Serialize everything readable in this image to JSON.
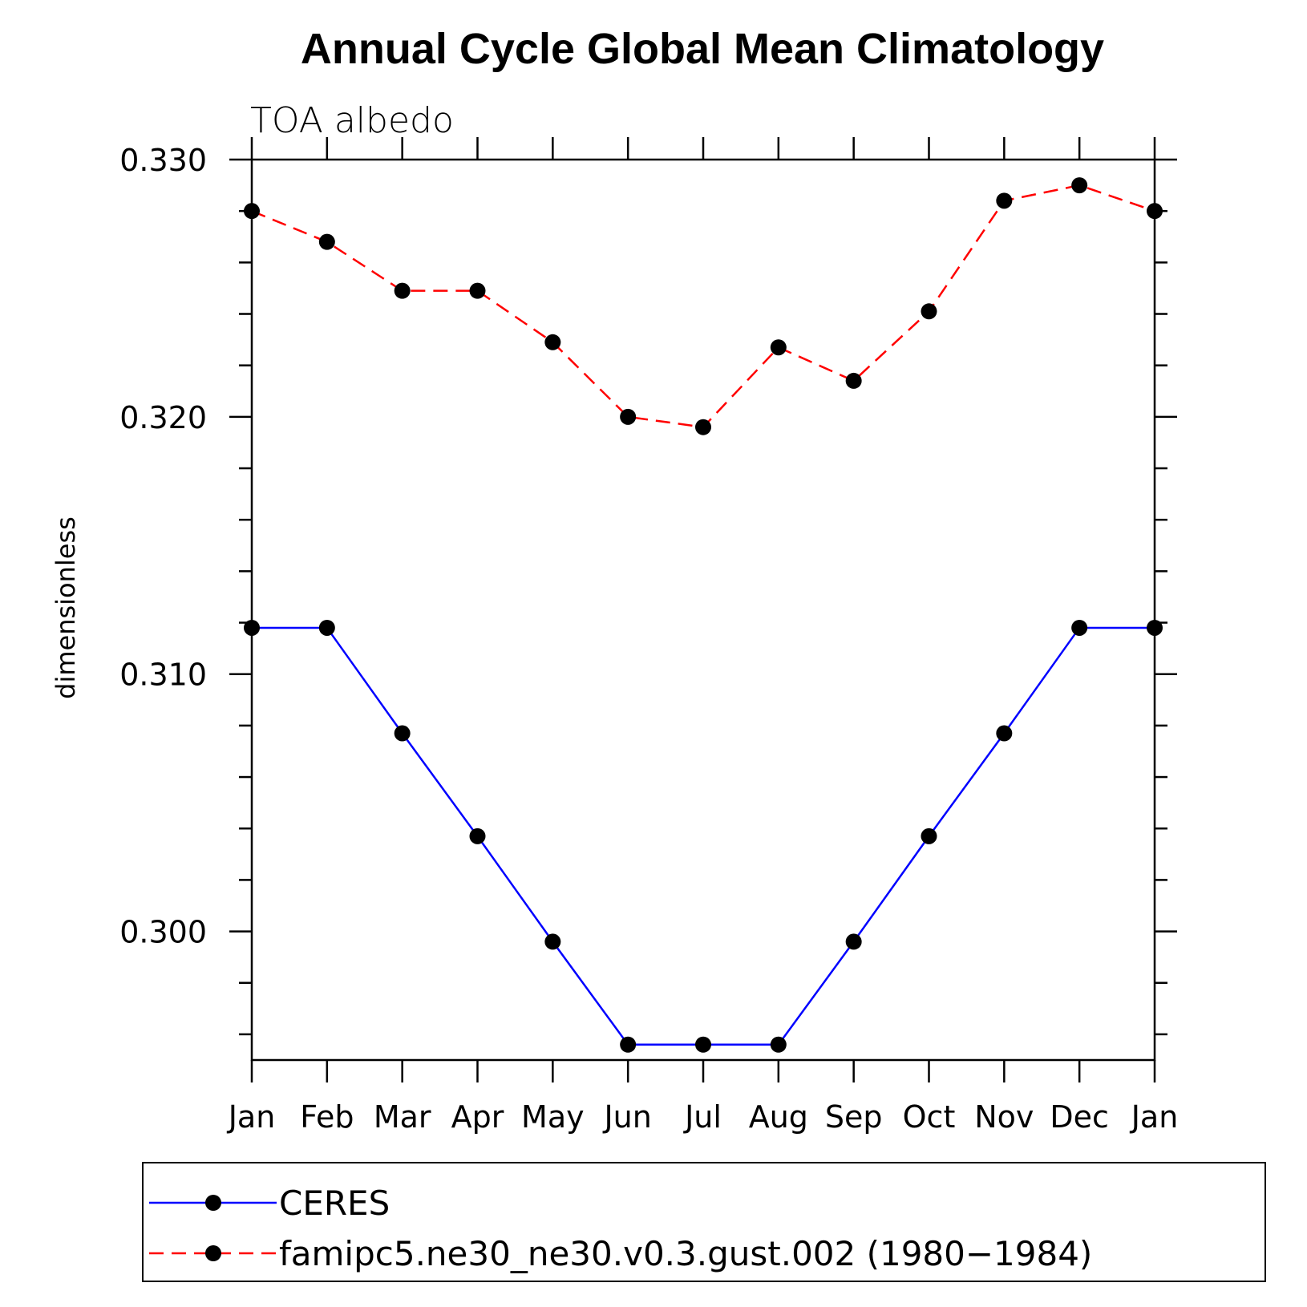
{
  "chart_data": {
    "type": "line",
    "title": "Annual Cycle Global Mean Climatology",
    "subtitle": "TOA albedo",
    "xlabel": "",
    "ylabel": "dimensionless",
    "categories": [
      "Jan",
      "Feb",
      "Mar",
      "Apr",
      "May",
      "Jun",
      "Jul",
      "Aug",
      "Sep",
      "Oct",
      "Nov",
      "Dec",
      "Jan"
    ],
    "ylim": [
      0.295,
      0.33
    ],
    "y_major_ticks": [
      0.3,
      0.31,
      0.32,
      0.33
    ],
    "y_tick_labels": [
      "0.300",
      "0.310",
      "0.320",
      "0.330"
    ],
    "y_minor_step": 0.002,
    "grid": false,
    "legend_position": "bottom",
    "series": [
      {
        "name": "CERES",
        "color": "#0000ff",
        "dash": "solid",
        "marker": "filled-circle",
        "values": [
          0.3118,
          0.3118,
          0.3077,
          0.3037,
          0.2996,
          0.2956,
          0.2956,
          0.2956,
          0.2996,
          0.3037,
          0.3077,
          0.3118,
          0.3118
        ]
      },
      {
        "name": "famipc5.ne30_ne30.v0.3.gust.002 (1980−1984)",
        "color": "#ff0000",
        "dash": "dashed",
        "marker": "filled-circle",
        "values": [
          0.328,
          0.3268,
          0.3249,
          0.3249,
          0.3229,
          0.32,
          0.3196,
          0.3227,
          0.3214,
          0.3241,
          0.3284,
          0.329,
          0.328
        ]
      }
    ]
  }
}
